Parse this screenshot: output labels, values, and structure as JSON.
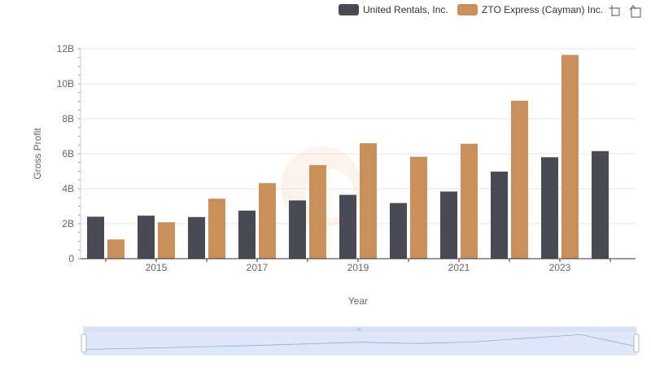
{
  "chart_data": {
    "type": "bar",
    "title": "",
    "xlabel": "Year",
    "ylabel": "Gross Profit",
    "x": [
      2014,
      2015,
      2016,
      2017,
      2018,
      2019,
      2020,
      2021,
      2022,
      2023,
      2024
    ],
    "x_tick_labels": [
      "2015",
      "2017",
      "2019",
      "2021",
      "2023"
    ],
    "y_tick_labels": [
      "0",
      "2B",
      "4B",
      "6B",
      "8B",
      "10B",
      "12B"
    ],
    "ylim": [
      0,
      12000000000
    ],
    "grid": true,
    "legend_position": "top-right",
    "series": [
      {
        "name": "United Rentals, Inc.",
        "color": "#4a4a55",
        "values": [
          2400000000,
          2460000000,
          2380000000,
          2750000000,
          3330000000,
          3650000000,
          3180000000,
          3840000000,
          4980000000,
          5800000000,
          6150000000
        ]
      },
      {
        "name": "ZTO Express (Cayman) Inc.",
        "color": "#c9905c",
        "values": [
          1100000000,
          2080000000,
          3430000000,
          4320000000,
          5350000000,
          6600000000,
          5830000000,
          6570000000,
          9030000000,
          11650000000,
          null
        ]
      }
    ]
  },
  "toolbar": {
    "icons": [
      "crop-icon",
      "restore-icon"
    ]
  }
}
